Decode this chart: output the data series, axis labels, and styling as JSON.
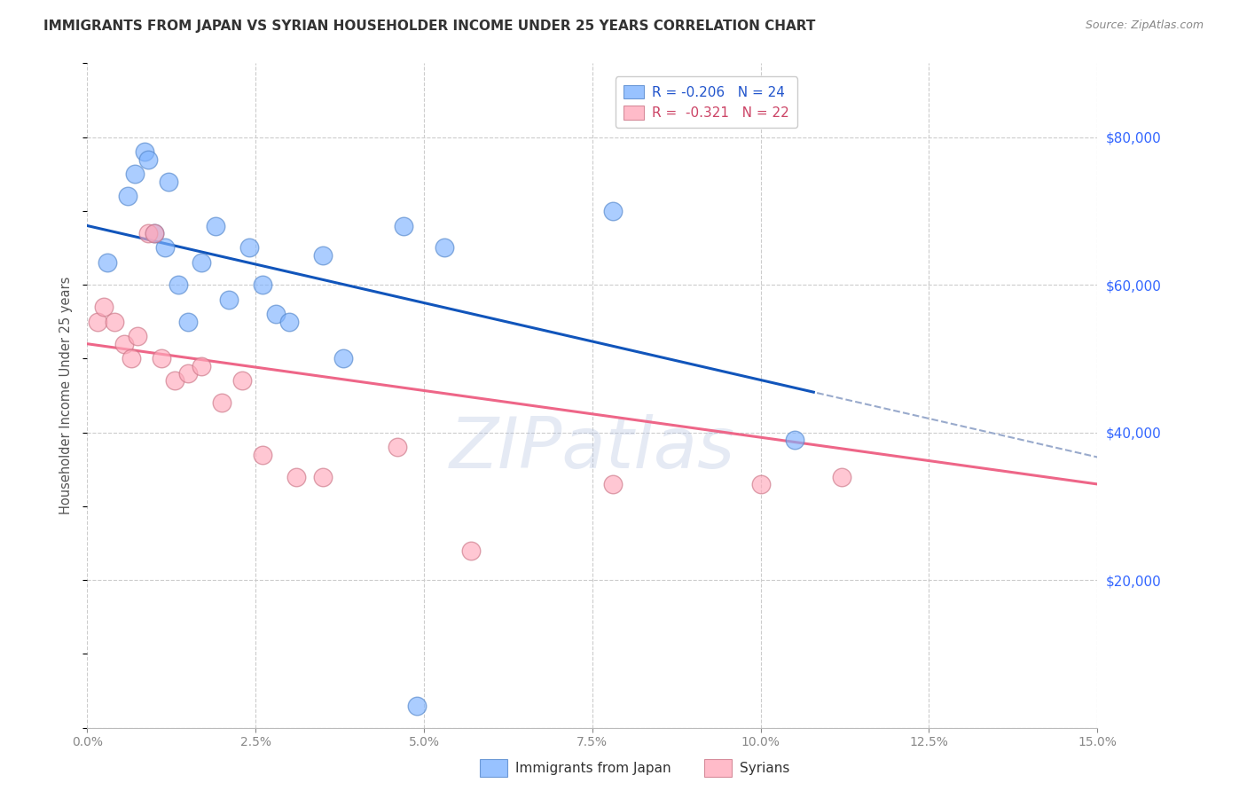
{
  "title": "IMMIGRANTS FROM JAPAN VS SYRIAN HOUSEHOLDER INCOME UNDER 25 YEARS CORRELATION CHART",
  "source": "Source: ZipAtlas.com",
  "ylabel": "Householder Income Under 25 years",
  "xlim": [
    0.0,
    15.0
  ],
  "ylim": [
    0,
    90000
  ],
  "yticks": [
    0,
    20000,
    40000,
    60000,
    80000
  ],
  "xticks": [
    0.0,
    2.5,
    5.0,
    7.5,
    10.0,
    12.5,
    15.0
  ],
  "japan_x": [
    0.3,
    0.6,
    0.7,
    0.85,
    0.9,
    1.0,
    1.15,
    1.2,
    1.35,
    1.5,
    1.7,
    1.9,
    2.1,
    2.4,
    2.6,
    2.8,
    3.0,
    3.5,
    3.8,
    4.7,
    5.3,
    7.8,
    10.5,
    4.9
  ],
  "japan_y": [
    63000,
    72000,
    75000,
    78000,
    77000,
    67000,
    65000,
    74000,
    60000,
    55000,
    63000,
    68000,
    58000,
    65000,
    60000,
    56000,
    55000,
    64000,
    50000,
    68000,
    65000,
    70000,
    39000,
    3000
  ],
  "syria_x": [
    0.15,
    0.25,
    0.4,
    0.55,
    0.65,
    0.75,
    0.9,
    1.0,
    1.1,
    1.3,
    1.5,
    1.7,
    2.0,
    2.3,
    2.6,
    3.1,
    3.5,
    4.6,
    5.7,
    7.8,
    10.0,
    11.2
  ],
  "syria_y": [
    55000,
    57000,
    55000,
    52000,
    50000,
    53000,
    67000,
    67000,
    50000,
    47000,
    48000,
    49000,
    44000,
    47000,
    37000,
    34000,
    34000,
    38000,
    24000,
    33000,
    33000,
    34000
  ],
  "japan_color": "#7EB3FF",
  "japan_color_edge": "#5588CC",
  "syria_color": "#FFAABC",
  "syria_color_edge": "#CC7788",
  "japan_line_color": "#1155BB",
  "japan_line_dash_color": "#99AACC",
  "syria_line_color": "#EE6688",
  "legend_r_japan": "R = -0.206",
  "legend_n_japan": "N = 24",
  "legend_r_syria": "R =  -0.321",
  "legend_n_syria": "N = 22",
  "watermark_text": "ZIPatlas",
  "background_color": "#FFFFFF",
  "grid_color": "#CCCCCC",
  "title_color": "#333333",
  "axis_label_color": "#555555",
  "right_ytick_color": "#3366FF",
  "xtick_color": "#3366FF",
  "japan_solid_end_x": 10.8,
  "syria_line_end_x": 15.0,
  "japan_line_start_x": 0.0,
  "japan_line_end_x": 15.0
}
